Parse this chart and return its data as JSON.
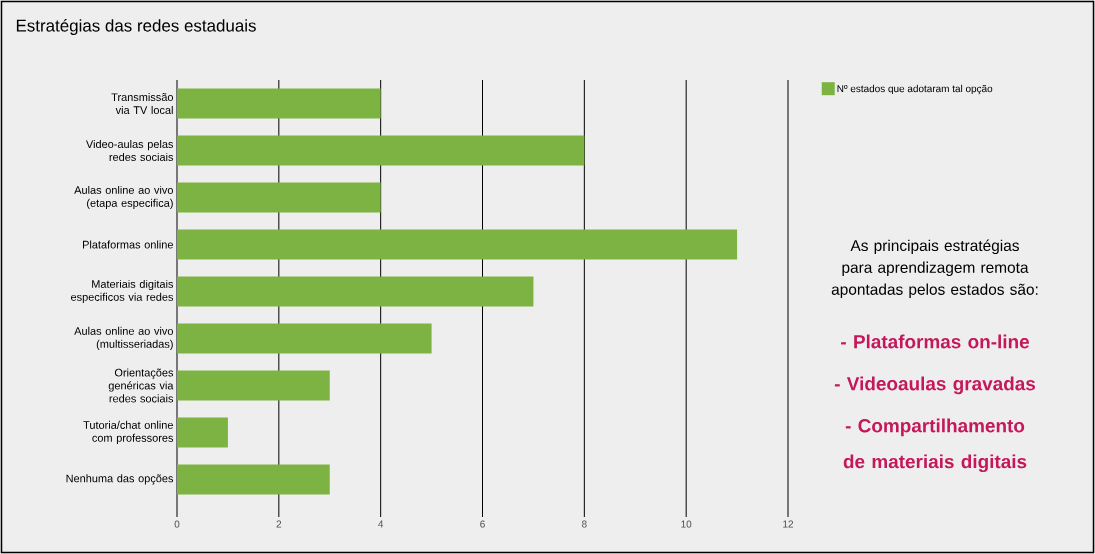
{
  "chart_data": {
    "type": "bar",
    "orientation": "horizontal",
    "title": "Estratégias das redes estaduais",
    "categories": [
      "Transmissão via TV local",
      "Video-aulas pelas redes sociais",
      "Aulas online ao vivo (etapa especifica)",
      "Plataformas online",
      "Materiais digitais especificos via redes",
      "Aulas online ao vivo (multisseriadas)",
      "Orientações genéricas via redes sociais",
      "Tutoria/chat online com professores",
      "Nenhuma das opções"
    ],
    "series": [
      {
        "name": "Nº estados que adotaram tal opção",
        "color": "#7cb342",
        "values": [
          4,
          8,
          4,
          11,
          7,
          5,
          3,
          1,
          3
        ]
      }
    ],
    "xlim": [
      0,
      12
    ],
    "xticks": [
      0,
      2,
      4,
      6,
      8,
      10,
      12
    ],
    "grid": "x",
    "legend": "top right",
    "annotations": [
      "As principais estratégias para aprendizagem remota apontadas pelos estados são:",
      "- Plataformas on-line",
      "- Videoaulas gravadas",
      "- Compartilhamento de materiais digitais"
    ]
  }
}
